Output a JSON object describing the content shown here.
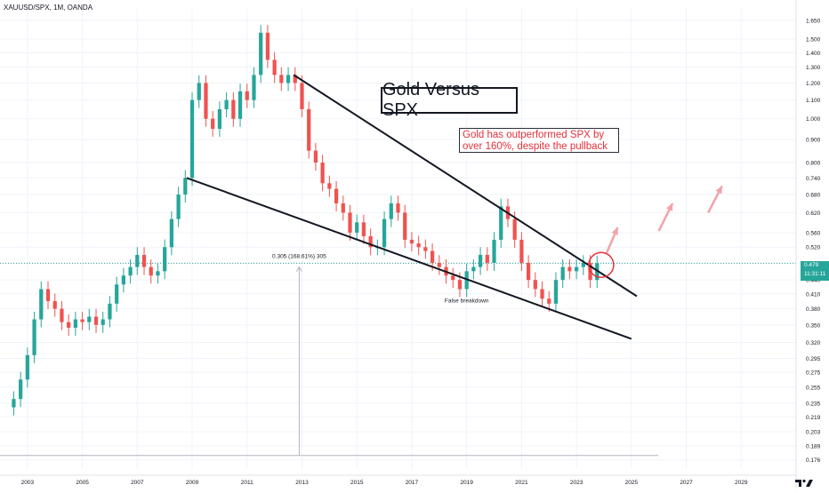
{
  "symbol_label": "XAUUSD/SPX, 1M, OANDA",
  "title_box": "Gold Versus SPX",
  "annotation": {
    "line1": "Gold has outperformed SPX by",
    "line2": "over 160%, despite the pullback"
  },
  "measure_label": "0.305 (168.61%) 305",
  "false_breakdown_label": "False breakdown",
  "current_price": {
    "value": "0.479",
    "time": "11:31:11"
  },
  "colors": {
    "up": "#26a69a",
    "down": "#ef5350",
    "annotation_text": "#e5303a",
    "arrow": "#f2a3a8",
    "circle": "#e5303a",
    "grid": "#f0f3fa",
    "price_tag": "#26a69a"
  },
  "chart_data": {
    "type": "candlestick",
    "y_scale": "log",
    "ylim": [
      0.168,
      1.75
    ],
    "xlim": [
      2002.0,
      2031.0
    ],
    "y_ticks": [
      "1.650",
      "1.500",
      "1.400",
      "1.300",
      "1.200",
      "1.100",
      "1.000",
      "0.900",
      "0.800",
      "0.740",
      "0.680",
      "0.620",
      "0.560",
      "0.520",
      "0.480",
      "0.440",
      "0.410",
      "0.380",
      "0.350",
      "0.320",
      "0.295",
      "0.275",
      "0.255",
      "0.235",
      "0.219",
      "0.203",
      "0.189",
      "0.176"
    ],
    "x_ticks": [
      "2003",
      "2005",
      "2007",
      "2009",
      "2011",
      "2013",
      "2015",
      "2017",
      "2019",
      "2021",
      "2023",
      "2025",
      "2027",
      "2029"
    ],
    "series": [
      {
        "x": 2002.5,
        "o": 0.23,
        "c": 0.24
      },
      {
        "x": 2002.75,
        "o": 0.24,
        "c": 0.265
      },
      {
        "x": 2003.0,
        "o": 0.265,
        "c": 0.3
      },
      {
        "x": 2003.25,
        "o": 0.3,
        "c": 0.36
      },
      {
        "x": 2003.5,
        "o": 0.36,
        "c": 0.42
      },
      {
        "x": 2003.75,
        "o": 0.42,
        "c": 0.395
      },
      {
        "x": 2004.0,
        "o": 0.395,
        "c": 0.38
      },
      {
        "x": 2004.25,
        "o": 0.38,
        "c": 0.355
      },
      {
        "x": 2004.5,
        "o": 0.355,
        "c": 0.345
      },
      {
        "x": 2004.75,
        "o": 0.345,
        "c": 0.36
      },
      {
        "x": 2005.0,
        "o": 0.36,
        "c": 0.355
      },
      {
        "x": 2005.25,
        "o": 0.355,
        "c": 0.365
      },
      {
        "x": 2005.5,
        "o": 0.365,
        "c": 0.35
      },
      {
        "x": 2005.75,
        "o": 0.35,
        "c": 0.36
      },
      {
        "x": 2006.0,
        "o": 0.36,
        "c": 0.39
      },
      {
        "x": 2006.25,
        "o": 0.39,
        "c": 0.43
      },
      {
        "x": 2006.5,
        "o": 0.43,
        "c": 0.45
      },
      {
        "x": 2006.75,
        "o": 0.45,
        "c": 0.47
      },
      {
        "x": 2007.0,
        "o": 0.47,
        "c": 0.5
      },
      {
        "x": 2007.25,
        "o": 0.5,
        "c": 0.47
      },
      {
        "x": 2007.5,
        "o": 0.47,
        "c": 0.45
      },
      {
        "x": 2007.75,
        "o": 0.45,
        "c": 0.46
      },
      {
        "x": 2008.0,
        "o": 0.46,
        "c": 0.52
      },
      {
        "x": 2008.25,
        "o": 0.52,
        "c": 0.6
      },
      {
        "x": 2008.5,
        "o": 0.6,
        "c": 0.68
      },
      {
        "x": 2008.75,
        "o": 0.68,
        "c": 0.74
      },
      {
        "x": 2009.0,
        "o": 0.74,
        "c": 1.1
      },
      {
        "x": 2009.25,
        "o": 1.1,
        "c": 1.2
      },
      {
        "x": 2009.5,
        "o": 1.2,
        "c": 1.0
      },
      {
        "x": 2009.75,
        "o": 1.0,
        "c": 0.95
      },
      {
        "x": 2010.0,
        "o": 0.95,
        "c": 1.05
      },
      {
        "x": 2010.25,
        "o": 1.05,
        "c": 1.1
      },
      {
        "x": 2010.5,
        "o": 1.1,
        "c": 1.0
      },
      {
        "x": 2010.75,
        "o": 1.0,
        "c": 1.15
      },
      {
        "x": 2011.0,
        "o": 1.15,
        "c": 1.1
      },
      {
        "x": 2011.25,
        "o": 1.1,
        "c": 1.25
      },
      {
        "x": 2011.5,
        "o": 1.25,
        "c": 1.55
      },
      {
        "x": 2011.75,
        "o": 1.55,
        "c": 1.35
      },
      {
        "x": 2012.0,
        "o": 1.35,
        "c": 1.25
      },
      {
        "x": 2012.25,
        "o": 1.25,
        "c": 1.2
      },
      {
        "x": 2012.5,
        "o": 1.2,
        "c": 1.25
      },
      {
        "x": 2012.75,
        "o": 1.25,
        "c": 1.2
      },
      {
        "x": 2013.0,
        "o": 1.2,
        "c": 1.05
      },
      {
        "x": 2013.25,
        "o": 1.05,
        "c": 0.85
      },
      {
        "x": 2013.5,
        "o": 0.85,
        "c": 0.8
      },
      {
        "x": 2013.75,
        "o": 0.8,
        "c": 0.72
      },
      {
        "x": 2014.0,
        "o": 0.72,
        "c": 0.7
      },
      {
        "x": 2014.25,
        "o": 0.7,
        "c": 0.65
      },
      {
        "x": 2014.5,
        "o": 0.65,
        "c": 0.62
      },
      {
        "x": 2014.75,
        "o": 0.62,
        "c": 0.56
      },
      {
        "x": 2015.0,
        "o": 0.56,
        "c": 0.59
      },
      {
        "x": 2015.25,
        "o": 0.59,
        "c": 0.55
      },
      {
        "x": 2015.5,
        "o": 0.55,
        "c": 0.52
      },
      {
        "x": 2015.75,
        "o": 0.52,
        "c": 0.52
      },
      {
        "x": 2016.0,
        "o": 0.52,
        "c": 0.6
      },
      {
        "x": 2016.25,
        "o": 0.6,
        "c": 0.65
      },
      {
        "x": 2016.5,
        "o": 0.65,
        "c": 0.62
      },
      {
        "x": 2016.75,
        "o": 0.62,
        "c": 0.54
      },
      {
        "x": 2017.0,
        "o": 0.54,
        "c": 0.53
      },
      {
        "x": 2017.25,
        "o": 0.53,
        "c": 0.52
      },
      {
        "x": 2017.5,
        "o": 0.52,
        "c": 0.51
      },
      {
        "x": 2017.75,
        "o": 0.51,
        "c": 0.48
      },
      {
        "x": 2018.0,
        "o": 0.48,
        "c": 0.47
      },
      {
        "x": 2018.25,
        "o": 0.47,
        "c": 0.45
      },
      {
        "x": 2018.5,
        "o": 0.45,
        "c": 0.44
      },
      {
        "x": 2018.75,
        "o": 0.44,
        "c": 0.42
      },
      {
        "x": 2019.0,
        "o": 0.42,
        "c": 0.46
      },
      {
        "x": 2019.25,
        "o": 0.46,
        "c": 0.47
      },
      {
        "x": 2019.5,
        "o": 0.47,
        "c": 0.5
      },
      {
        "x": 2019.75,
        "o": 0.5,
        "c": 0.48
      },
      {
        "x": 2020.0,
        "o": 0.48,
        "c": 0.54
      },
      {
        "x": 2020.25,
        "o": 0.54,
        "c": 0.64
      },
      {
        "x": 2020.5,
        "o": 0.64,
        "c": 0.6
      },
      {
        "x": 2020.75,
        "o": 0.6,
        "c": 0.54
      },
      {
        "x": 2021.0,
        "o": 0.54,
        "c": 0.48
      },
      {
        "x": 2021.25,
        "o": 0.48,
        "c": 0.44
      },
      {
        "x": 2021.5,
        "o": 0.44,
        "c": 0.42
      },
      {
        "x": 2021.75,
        "o": 0.42,
        "c": 0.4
      },
      {
        "x": 2022.0,
        "o": 0.4,
        "c": 0.39
      },
      {
        "x": 2022.25,
        "o": 0.39,
        "c": 0.44
      },
      {
        "x": 2022.5,
        "o": 0.44,
        "c": 0.47
      },
      {
        "x": 2022.75,
        "o": 0.47,
        "c": 0.46
      },
      {
        "x": 2023.0,
        "o": 0.46,
        "c": 0.47
      },
      {
        "x": 2023.25,
        "o": 0.47,
        "c": 0.48
      },
      {
        "x": 2023.5,
        "o": 0.48,
        "c": 0.44
      },
      {
        "x": 2023.75,
        "o": 0.44,
        "c": 0.479
      }
    ]
  }
}
